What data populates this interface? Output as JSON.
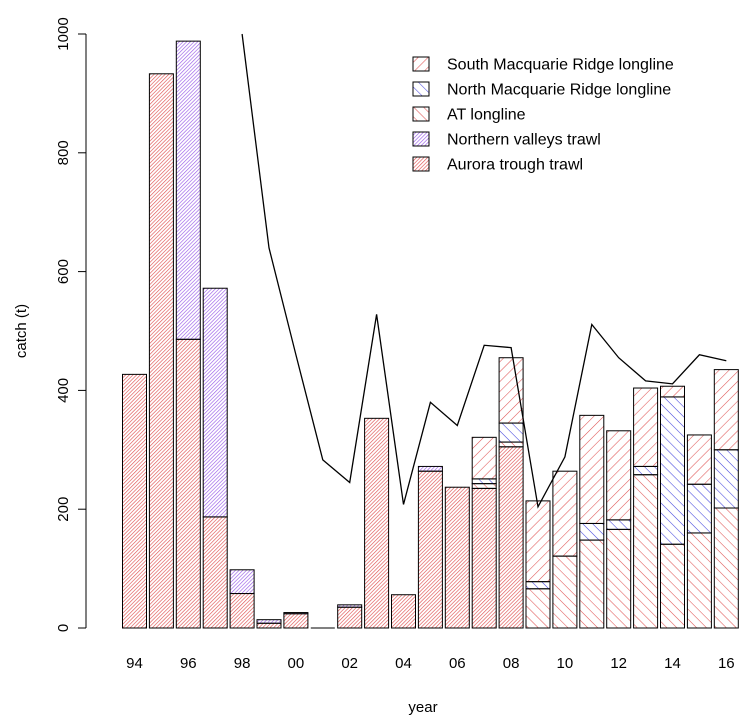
{
  "chart_data": {
    "type": "bar",
    "stacked": true,
    "xlabel": "year",
    "ylabel": "catch (t)",
    "ylim": [
      0,
      1000
    ],
    "yticks": [
      0,
      200,
      400,
      600,
      800,
      1000
    ],
    "x": [
      1994,
      1995,
      1996,
      1997,
      1998,
      1999,
      2000,
      2001,
      2002,
      2003,
      2004,
      2005,
      2006,
      2007,
      2008,
      2009,
      2010,
      2011,
      2012,
      2013,
      2014,
      2015,
      2016
    ],
    "x_tick_labels": [
      {
        "year": 1994,
        "label": "94"
      },
      {
        "year": 1996,
        "label": "96"
      },
      {
        "year": 1998,
        "label": "98"
      },
      {
        "year": 2000,
        "label": "00"
      },
      {
        "year": 2002,
        "label": "02"
      },
      {
        "year": 2004,
        "label": "04"
      },
      {
        "year": 2006,
        "label": "06"
      },
      {
        "year": 2008,
        "label": "08"
      },
      {
        "year": 2010,
        "label": "10"
      },
      {
        "year": 2012,
        "label": "12"
      },
      {
        "year": 2014,
        "label": "14"
      },
      {
        "year": 2016,
        "label": "16"
      }
    ],
    "series": [
      {
        "name": "Aurora trough trawl",
        "color": "#e05555",
        "hatch": "dense45",
        "values": [
          427,
          933,
          486,
          187,
          58,
          8,
          24,
          0,
          35,
          353,
          56,
          264,
          237,
          235,
          305,
          0,
          0,
          0,
          0,
          0,
          0,
          0,
          0
        ]
      },
      {
        "name": "Northern valleys trawl",
        "color": "#9b5fe8",
        "hatch": "dense45",
        "values": [
          0,
          0,
          502,
          385,
          40,
          6,
          2,
          0,
          4,
          0,
          0,
          8,
          0,
          0,
          0,
          0,
          0,
          0,
          0,
          0,
          0,
          0,
          0
        ]
      },
      {
        "name": "AT longline",
        "color": "#e05555",
        "hatch": "sparse135",
        "values": [
          0,
          0,
          0,
          0,
          0,
          0,
          0,
          0,
          0,
          0,
          0,
          0,
          0,
          8,
          8,
          66,
          121,
          148,
          166,
          258,
          141,
          160,
          202
        ]
      },
      {
        "name": "North Macquarie Ridge longline",
        "color": "#4444dd",
        "hatch": "sparse135",
        "values": [
          0,
          0,
          0,
          0,
          0,
          0,
          0,
          0,
          0,
          0,
          0,
          0,
          0,
          8,
          32,
          12,
          0,
          28,
          16,
          14,
          248,
          82,
          98
        ]
      },
      {
        "name": "South Macquarie Ridge longline",
        "color": "#e05555",
        "hatch": "sparse45",
        "values": [
          0,
          0,
          0,
          0,
          0,
          0,
          0,
          0,
          0,
          0,
          0,
          0,
          0,
          70,
          110,
          136,
          143,
          182,
          150,
          132,
          18,
          83,
          135
        ]
      }
    ],
    "line": {
      "x": [
        1998,
        1999,
        2000,
        2001,
        2002,
        2003,
        2004,
        2005,
        2006,
        2007,
        2008,
        2009,
        2010,
        2011,
        2012,
        2013,
        2014,
        2015,
        2016
      ],
      "values": [
        1000,
        640,
        460,
        283,
        245,
        528,
        208,
        380,
        341,
        476,
        472,
        204,
        288,
        511,
        455,
        416,
        411,
        460,
        450
      ],
      "color": "#000000"
    },
    "legend": {
      "position": "top-right",
      "order": [
        "South Macquarie Ridge longline",
        "North Macquarie Ridge longline",
        "AT longline",
        "Northern valleys trawl",
        "Aurora trough trawl"
      ]
    }
  }
}
